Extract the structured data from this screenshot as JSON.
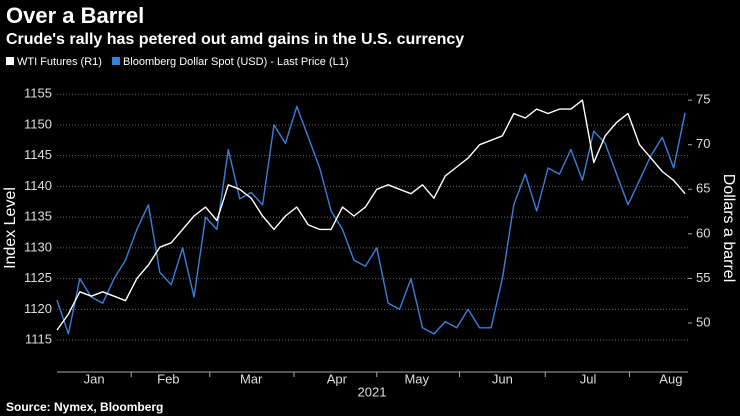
{
  "chart_data": {
    "type": "line",
    "title": "Over a Barrel",
    "subtitle": "Crude's rally has petered out amd gains in the U.S. currency",
    "source": "Source: Nymex, Bloomberg",
    "xlabel": "2021",
    "ylabel": "Index Level",
    "y2label": "Dollars a barrel",
    "x": [
      4,
      8,
      12,
      16,
      20,
      24,
      28,
      32,
      36,
      40,
      44,
      48,
      52,
      56,
      60,
      64,
      68,
      72,
      76,
      80,
      84,
      88,
      92,
      96,
      100,
      104,
      108,
      112,
      116,
      120,
      124,
      128,
      132,
      136,
      140,
      144,
      148,
      152,
      156,
      160,
      164,
      168,
      172,
      176,
      180,
      184,
      188,
      192,
      196,
      200,
      204,
      208,
      212,
      216,
      220,
      224
    ],
    "xlim": [
      4,
      225
    ],
    "xticks": [
      {
        "value": 17,
        "label": "Jan"
      },
      {
        "value": 43,
        "label": "Feb"
      },
      {
        "value": 72,
        "label": "Mar"
      },
      {
        "value": 102,
        "label": "Apr"
      },
      {
        "value": 130,
        "label": "May"
      },
      {
        "value": 160,
        "label": "Jun"
      },
      {
        "value": 190,
        "label": "Jul"
      },
      {
        "value": 219,
        "label": "Aug"
      }
    ],
    "ylim": [
      1109.8,
      1156.5
    ],
    "yticks": [
      1115,
      1120,
      1125,
      1130,
      1135,
      1140,
      1145,
      1150,
      1155
    ],
    "y2lim": [
      44.5,
      76.7
    ],
    "y2ticks": [
      50,
      55,
      60,
      65,
      70,
      75
    ],
    "grid": true,
    "series": [
      {
        "name": "WTI Futures (R1)",
        "color": "#ffffff",
        "axis": "y2",
        "values": [
          49.2,
          51,
          53.5,
          53,
          53.5,
          53,
          52.5,
          55,
          56.5,
          58.5,
          59,
          60.5,
          62,
          63,
          61.5,
          65.5,
          65,
          64,
          62,
          60.5,
          62,
          63,
          61,
          60.5,
          60.5,
          63,
          62,
          63,
          65,
          65.5,
          65,
          64.5,
          65.5,
          64,
          66.5,
          67.5,
          68.5,
          70,
          70.5,
          71,
          73.5,
          73,
          74,
          73.5,
          74,
          74,
          75,
          68,
          71,
          72.5,
          73.5,
          70,
          68.5,
          67,
          66,
          64.5
        ]
      },
      {
        "name": "Bloomberg Dollar Spot (USD) - Last Price (L1)",
        "color": "#3a7fd9",
        "axis": "y",
        "values": [
          1121.5,
          1116,
          1125,
          1122,
          1121,
          1125,
          1128,
          1133,
          1137,
          1126,
          1124,
          1130,
          1122,
          1135,
          1133,
          1146,
          1138,
          1139,
          1137,
          1150,
          1147,
          1153,
          1148,
          1143,
          1136,
          1133,
          1128,
          1127,
          1130,
          1121,
          1120,
          1125,
          1117,
          1116,
          1118,
          1117,
          1120,
          1117,
          1117,
          1125,
          1137,
          1142,
          1136,
          1143,
          1142,
          1146,
          1141,
          1149,
          1147,
          1142,
          1137,
          1141,
          1145,
          1148,
          1143,
          1152
        ]
      }
    ]
  }
}
